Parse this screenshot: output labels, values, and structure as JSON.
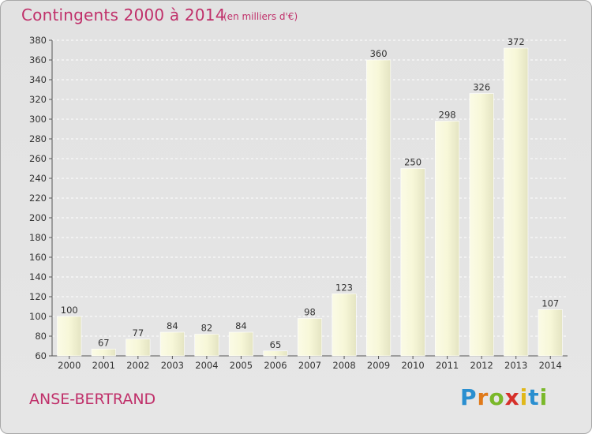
{
  "chart_data": {
    "type": "bar",
    "title": "Contingents 2000 à 2014",
    "subtitle": "(en milliers d'€)",
    "categories": [
      "2000",
      "2001",
      "2002",
      "2003",
      "2004",
      "2005",
      "2006",
      "2007",
      "2008",
      "2009",
      "2010",
      "2011",
      "2012",
      "2013",
      "2014"
    ],
    "values": [
      100,
      67,
      77,
      84,
      82,
      84,
      65,
      98,
      123,
      360,
      250,
      298,
      326,
      372,
      107
    ],
    "ylim": [
      60,
      380
    ],
    "yticks": [
      60,
      80,
      100,
      120,
      140,
      160,
      180,
      200,
      220,
      240,
      260,
      280,
      300,
      320,
      340,
      360,
      380
    ],
    "grid": true,
    "bar_color": "#f7f7d8",
    "title_color": "#c0306a"
  },
  "footer": {
    "place": "ANSE-BERTRAND"
  },
  "logo": {
    "text": "Proxiti",
    "letters": [
      "P",
      "r",
      "o",
      "x",
      "i",
      "t",
      "i"
    ],
    "colors": [
      "#2a8fd0",
      "#e07a1a",
      "#7ab82a",
      "#d6302a",
      "#e0b81a",
      "#2a8fd0",
      "#7ab82a"
    ]
  }
}
